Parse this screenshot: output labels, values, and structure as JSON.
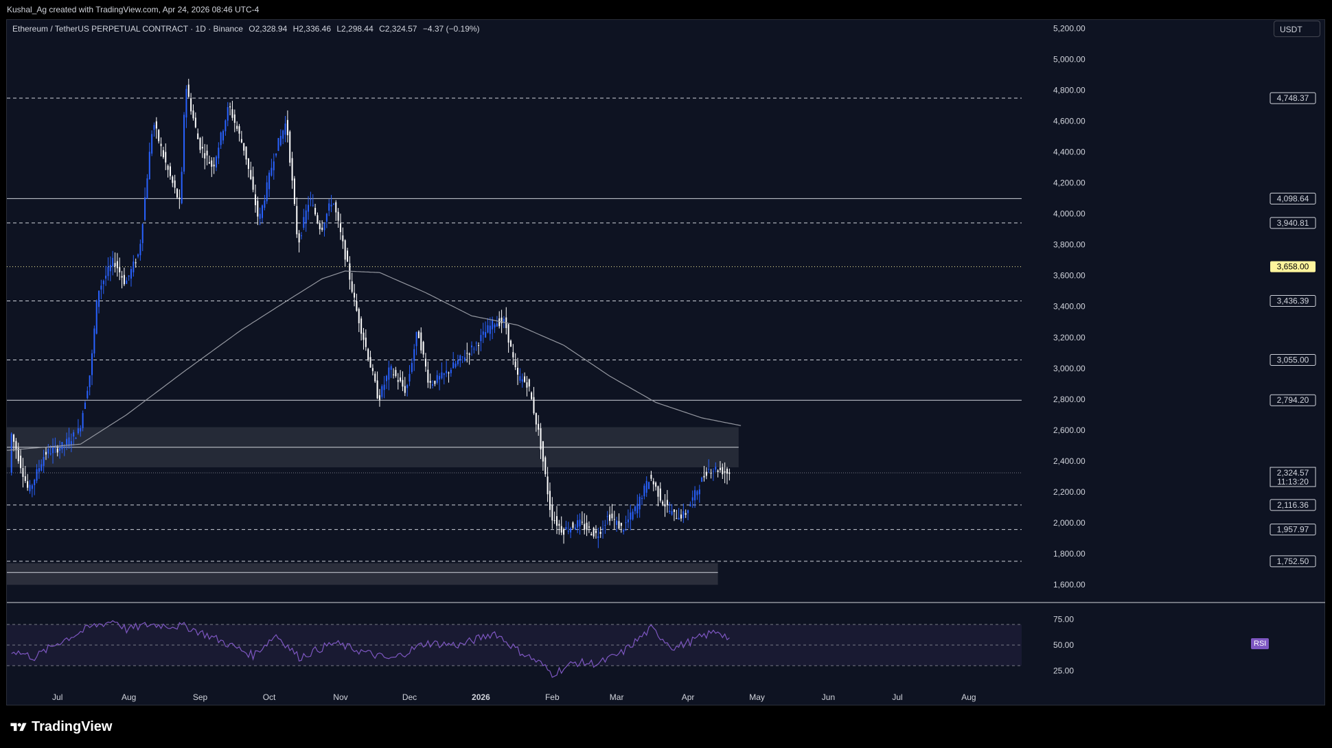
{
  "header": {
    "credit": "Kushal_Ag created with TradingView.com, Apr 24, 2026 08:46 UTC-4"
  },
  "legend": {
    "symbol": "Ethereum / TetherUS PERPETUAL CONTRACT · 1D · Binance",
    "open": "O2,328.94",
    "high": "H2,336.46",
    "low": "L2,298.44",
    "close": "C2,324.57",
    "change": "−4.37 (−0.19%)"
  },
  "currency_button": "USDT",
  "footer": {
    "brand": "TradingView"
  },
  "colors": {
    "background": "#0e1322",
    "up_candle": "#2962ff",
    "down_candle": "#ffffff",
    "ma_line": "#9598a1",
    "rsi_line": "#7e57c2",
    "highlight_label": "#fff59d"
  },
  "chart_data": [
    {
      "type": "candlestick",
      "title": "Ethereum / TetherUS PERPETUAL CONTRACT · 1D · Binance",
      "ylim": [
        1490,
        5250
      ],
      "y_ticks": [
        1600,
        1800,
        2000,
        2200,
        2400,
        2600,
        2800,
        3000,
        3200,
        3400,
        3600,
        3800,
        4000,
        4200,
        4400,
        4600,
        4800,
        5000,
        5200
      ],
      "y_tick_labels": [
        "1,600.00",
        "1,800.00",
        "2,000.00",
        "2,200.00",
        "2,400.00",
        "2,600.00",
        "2,800.00",
        "3,000.00",
        "3,200.00",
        "3,400.00",
        "3,600.00",
        "3,800.00",
        "4,000.00",
        "4,200.00",
        "4,400.00",
        "4,600.00",
        "4,800.00",
        "5,000.00",
        "5,200.00"
      ],
      "x_labels": [
        "Jul",
        "Aug",
        "Sep",
        "Oct",
        "Nov",
        "Dec",
        "2026",
        "Feb",
        "Mar",
        "Apr",
        "May",
        "Jun",
        "Jul",
        "Aug"
      ],
      "x_label_days": [
        0,
        31,
        62,
        92,
        123,
        153,
        184,
        215,
        243,
        274,
        304,
        335,
        365,
        396
      ],
      "x_range_days": [
        -22,
        419
      ],
      "key_points": [
        {
          "day": -20,
          "price": 2600
        },
        {
          "day": -12,
          "price": 2200
        },
        {
          "day": -5,
          "price": 2450
        },
        {
          "day": 3,
          "price": 2500
        },
        {
          "day": 10,
          "price": 2600
        },
        {
          "day": 15,
          "price": 3000
        },
        {
          "day": 18,
          "price": 3500
        },
        {
          "day": 25,
          "price": 3700
        },
        {
          "day": 30,
          "price": 3550
        },
        {
          "day": 36,
          "price": 3750
        },
        {
          "day": 42,
          "price": 4600
        },
        {
          "day": 48,
          "price": 4300
        },
        {
          "day": 54,
          "price": 4050
        },
        {
          "day": 56,
          "price": 4850
        },
        {
          "day": 62,
          "price": 4450
        },
        {
          "day": 68,
          "price": 4300
        },
        {
          "day": 75,
          "price": 4700
        },
        {
          "day": 82,
          "price": 4400
        },
        {
          "day": 88,
          "price": 3950
        },
        {
          "day": 95,
          "price": 4400
        },
        {
          "day": 100,
          "price": 4600
        },
        {
          "day": 105,
          "price": 3800
        },
        {
          "day": 110,
          "price": 4100
        },
        {
          "day": 115,
          "price": 3900
        },
        {
          "day": 120,
          "price": 4100
        },
        {
          "day": 126,
          "price": 3700
        },
        {
          "day": 130,
          "price": 3400
        },
        {
          "day": 136,
          "price": 3050
        },
        {
          "day": 140,
          "price": 2800
        },
        {
          "day": 145,
          "price": 3000
        },
        {
          "day": 152,
          "price": 2850
        },
        {
          "day": 157,
          "price": 3250
        },
        {
          "day": 162,
          "price": 2900
        },
        {
          "day": 168,
          "price": 2950
        },
        {
          "day": 175,
          "price": 3050
        },
        {
          "day": 182,
          "price": 3150
        },
        {
          "day": 190,
          "price": 3300
        },
        {
          "day": 195,
          "price": 3300
        },
        {
          "day": 200,
          "price": 2950
        },
        {
          "day": 205,
          "price": 2900
        },
        {
          "day": 210,
          "price": 2550
        },
        {
          "day": 215,
          "price": 2050
        },
        {
          "day": 220,
          "price": 1950
        },
        {
          "day": 227,
          "price": 2000
        },
        {
          "day": 235,
          "price": 1920
        },
        {
          "day": 240,
          "price": 2050
        },
        {
          "day": 246,
          "price": 1960
        },
        {
          "day": 252,
          "price": 2100
        },
        {
          "day": 258,
          "price": 2300
        },
        {
          "day": 263,
          "price": 2150
        },
        {
          "day": 268,
          "price": 2050
        },
        {
          "day": 273,
          "price": 2050
        },
        {
          "day": 278,
          "price": 2200
        },
        {
          "day": 283,
          "price": 2350
        },
        {
          "day": 287,
          "price": 2350
        },
        {
          "day": 292,
          "price": 2325
        }
      ],
      "moving_average": [
        {
          "day": -22,
          "price": 2470
        },
        {
          "day": 10,
          "price": 2510
        },
        {
          "day": 30,
          "price": 2700
        },
        {
          "day": 55,
          "price": 2980
        },
        {
          "day": 80,
          "price": 3250
        },
        {
          "day": 100,
          "price": 3440
        },
        {
          "day": 115,
          "price": 3580
        },
        {
          "day": 125,
          "price": 3630
        },
        {
          "day": 140,
          "price": 3620
        },
        {
          "day": 160,
          "price": 3490
        },
        {
          "day": 180,
          "price": 3340
        },
        {
          "day": 200,
          "price": 3280
        },
        {
          "day": 220,
          "price": 3150
        },
        {
          "day": 240,
          "price": 2950
        },
        {
          "day": 260,
          "price": 2780
        },
        {
          "day": 280,
          "price": 2680
        },
        {
          "day": 297,
          "price": 2630
        }
      ],
      "horizontal_levels": [
        {
          "price": 4748.37,
          "label": "4,748.37",
          "style": "dashed"
        },
        {
          "price": 4098.64,
          "label": "4,098.64",
          "style": "solid"
        },
        {
          "price": 3940.81,
          "label": "3,940.81",
          "style": "dashed"
        },
        {
          "price": 3658.0,
          "label": "3,658.00",
          "style": "dotted-yellow"
        },
        {
          "price": 3436.39,
          "label": "3,436.39",
          "style": "dashed"
        },
        {
          "price": 3055.0,
          "label": "3,055.00",
          "style": "dashed"
        },
        {
          "price": 2794.2,
          "label": "2,794.20",
          "style": "solid"
        },
        {
          "price": 2116.36,
          "label": "2,116.36",
          "style": "dashed"
        },
        {
          "price": 1957.97,
          "label": "1,957.97",
          "style": "dashed"
        },
        {
          "price": 1752.5,
          "label": "1,752.50",
          "style": "dashed"
        }
      ],
      "zones": [
        {
          "from_price": 2360,
          "to_price": 2620,
          "mid_price": 2490
        },
        {
          "from_price": 1600,
          "to_price": 1740,
          "mid_price": 1680
        }
      ],
      "last_price": {
        "value": 2324.57,
        "label": "2,324.57",
        "countdown": "11:13:20"
      }
    },
    {
      "type": "line",
      "title": "RSI",
      "ylim": [
        10,
        90
      ],
      "y_ticks": [
        25,
        50,
        75
      ],
      "y_tick_labels": [
        "25.00",
        "50.00",
        "75.00"
      ],
      "overbought": 70,
      "oversold": 30,
      "key_points": [
        {
          "day": -20,
          "value": 45
        },
        {
          "day": -10,
          "value": 38
        },
        {
          "day": 0,
          "value": 52
        },
        {
          "day": 15,
          "value": 68
        },
        {
          "day": 25,
          "value": 74
        },
        {
          "day": 30,
          "value": 65
        },
        {
          "day": 40,
          "value": 70
        },
        {
          "day": 56,
          "value": 68
        },
        {
          "day": 70,
          "value": 55
        },
        {
          "day": 85,
          "value": 40
        },
        {
          "day": 95,
          "value": 60
        },
        {
          "day": 105,
          "value": 38
        },
        {
          "day": 120,
          "value": 52
        },
        {
          "day": 135,
          "value": 42
        },
        {
          "day": 145,
          "value": 36
        },
        {
          "day": 160,
          "value": 52
        },
        {
          "day": 175,
          "value": 50
        },
        {
          "day": 190,
          "value": 62
        },
        {
          "day": 200,
          "value": 45
        },
        {
          "day": 210,
          "value": 32
        },
        {
          "day": 215,
          "value": 22
        },
        {
          "day": 225,
          "value": 33
        },
        {
          "day": 235,
          "value": 32
        },
        {
          "day": 245,
          "value": 42
        },
        {
          "day": 258,
          "value": 66
        },
        {
          "day": 268,
          "value": 47
        },
        {
          "day": 280,
          "value": 58
        },
        {
          "day": 287,
          "value": 64
        },
        {
          "day": 292,
          "value": 56
        }
      ],
      "badge": "RSI"
    }
  ]
}
